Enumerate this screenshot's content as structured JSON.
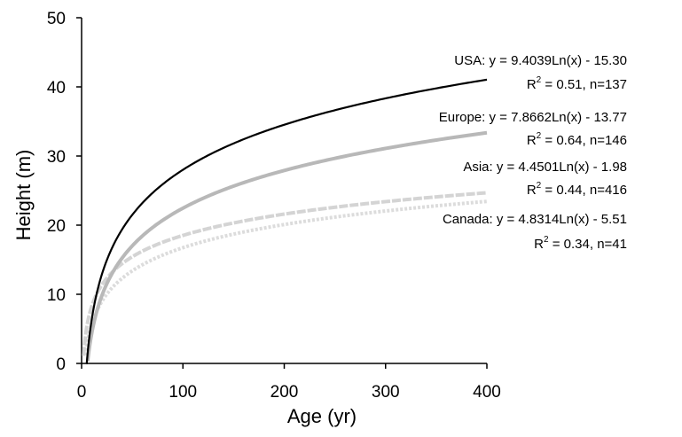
{
  "chart_data": {
    "type": "line",
    "xlabel": "Age (yr)",
    "ylabel": "Height (m)",
    "xlim": [
      0,
      400
    ],
    "ylim": [
      0,
      50
    ],
    "x_ticks": [
      0,
      100,
      200,
      300,
      400
    ],
    "y_ticks": [
      0,
      10,
      20,
      30,
      40,
      50
    ],
    "x_tick_labels": [
      "0",
      "100",
      "200",
      "300",
      "400"
    ],
    "y_tick_labels": [
      "0",
      "10",
      "20",
      "30",
      "40",
      "50"
    ],
    "grid": false,
    "series": [
      {
        "name": "USA",
        "model": "logarithmic",
        "a": 9.4039,
        "b": -15.3,
        "equation": "USA: y = 9.4039Ln(x) - 15.30",
        "r2_label": "R",
        "r2_value": " = 0.51, n=137",
        "color": "#000000",
        "x": [
          5,
          10,
          20,
          50,
          100,
          150,
          200,
          250,
          300,
          350,
          400
        ],
        "y": [
          -0.17,
          6.35,
          12.87,
          21.49,
          28.01,
          31.82,
          34.52,
          36.62,
          38.34,
          39.79,
          41.04
        ]
      },
      {
        "name": "Europe",
        "model": "logarithmic",
        "a": 7.8662,
        "b": -13.77,
        "equation": "Europe: y = 7.8662Ln(x) - 13.77",
        "r2_label": "R",
        "r2_value": " = 0.64, n=146",
        "color": "#b8b8b8",
        "x": [
          6,
          10,
          20,
          50,
          100,
          150,
          200,
          250,
          300,
          350,
          400
        ],
        "y": [
          0.32,
          4.34,
          9.8,
          17.0,
          22.46,
          25.65,
          27.91,
          29.66,
          31.1,
          32.31,
          33.36
        ]
      },
      {
        "name": "Asia",
        "model": "logarithmic",
        "a": 4.4501,
        "b": -1.98,
        "equation": "Asia: y = 4.4501Ln(x) - 1.98",
        "r2_label": "R",
        "r2_value": " = 0.44, n=416",
        "color": "#d4d4d4",
        "x": [
          2,
          5,
          10,
          20,
          50,
          100,
          150,
          200,
          250,
          300,
          350,
          400
        ],
        "y": [
          1.1,
          5.18,
          8.27,
          11.35,
          15.43,
          18.51,
          20.32,
          21.6,
          22.59,
          23.4,
          24.09,
          24.68
        ]
      },
      {
        "name": "Canada",
        "model": "logarithmic",
        "a": 4.8314,
        "b": -5.51,
        "equation": "Canada: y = 4.8314Ln(x) - 5.51",
        "r2_label": "R",
        "r2_value": " = 0.34, n=41",
        "color": "#dcdcdc",
        "x": [
          4,
          5,
          10,
          20,
          50,
          100,
          150,
          200,
          250,
          300,
          350,
          400
        ],
        "y": [
          1.19,
          2.27,
          5.61,
          8.96,
          13.39,
          16.74,
          18.7,
          20.09,
          21.17,
          22.05,
          22.79,
          23.44
        ]
      }
    ]
  }
}
